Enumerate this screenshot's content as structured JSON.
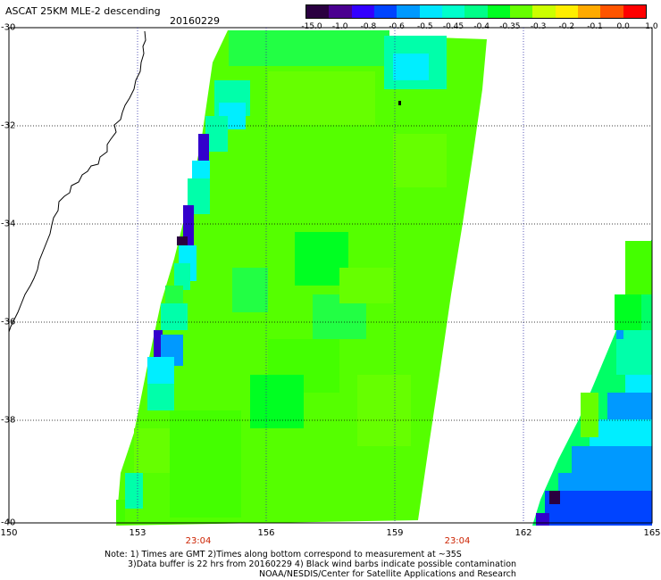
{
  "header": {
    "title": "ASCAT 25KM MLE-2 descending",
    "date": "20160229"
  },
  "colorbar": {
    "colors": [
      "#2a0040",
      "#4a0090",
      "#3300ff",
      "#0044ff",
      "#0099ff",
      "#00e6ff",
      "#00ffcc",
      "#00ff88",
      "#00ff22",
      "#66ff00",
      "#ccff00",
      "#ffee00",
      "#ffaa00",
      "#ff5500",
      "#ff0000"
    ],
    "labels": [
      "-15.0",
      "-1.0",
      "-0.8",
      "-0.6",
      "-0.5",
      "-0.45",
      "-0.4",
      "-0.35",
      "-0.3",
      "-0.2",
      "-0.1",
      "0.0",
      "1.0"
    ]
  },
  "map": {
    "lon_labels": [
      "150",
      "153",
      "156",
      "159",
      "162",
      "165"
    ],
    "lat_labels": [
      "-30",
      "-32",
      "-34",
      "-36",
      "-38",
      "-40"
    ],
    "time_labels": [
      "23:04",
      "23:04"
    ]
  },
  "notes": [
    "Note: 1) Times are GMT 2)Times along bottom correspond to measurement at ~35S",
    "3)Data buffer is 22 hrs from 20160229 4) Black wind barbs indicate possible contamination",
    "NOAA/NESDIS/Center for Satellite Applications and Research"
  ]
}
